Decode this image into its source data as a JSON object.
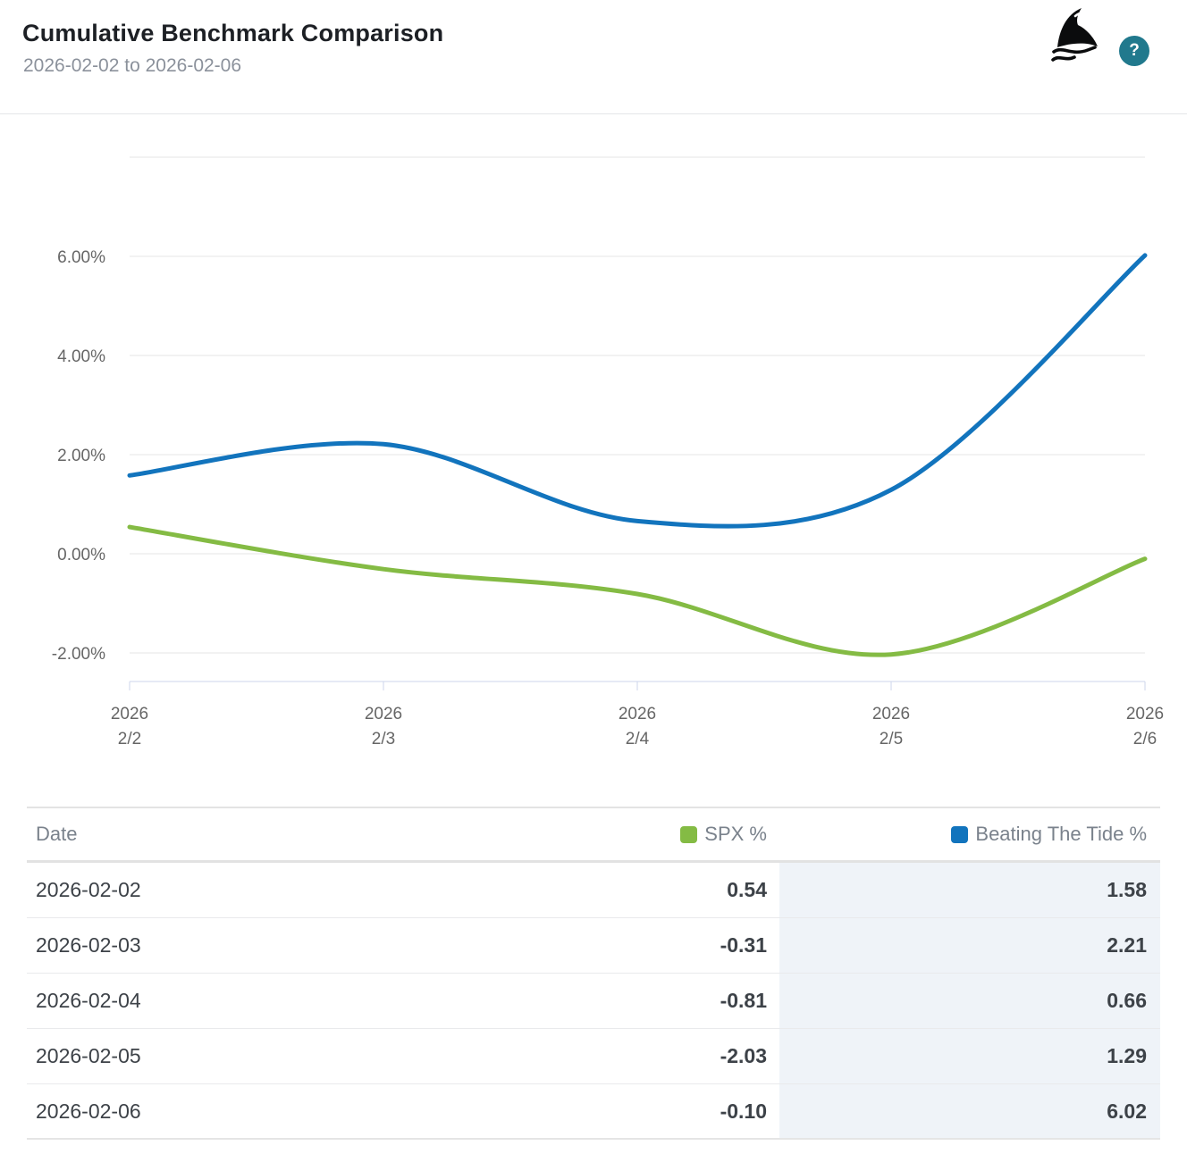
{
  "header": {
    "title": "Cumulative Benchmark Comparison",
    "date_range": "2026-02-02 to 2026-02-06",
    "logo_icon": "shark-fin-logo",
    "help_label": "?"
  },
  "colors": {
    "spx_green": "#84bb44",
    "tide_blue": "#1274bd",
    "help_teal": "#21798d",
    "grid_gray": "#e6e6e6",
    "axis_blue_gray": "#ccd6eb",
    "highlight_col_bg": "#eff3f8"
  },
  "chart_data": {
    "type": "line",
    "subtype": "spline",
    "categories": [
      [
        "2026",
        "2/2"
      ],
      [
        "2026",
        "2/3"
      ],
      [
        "2026",
        "2/4"
      ],
      [
        "2026",
        "2/5"
      ],
      [
        "2026",
        "2/6"
      ]
    ],
    "x": [
      "2026-02-02",
      "2026-02-03",
      "2026-02-04",
      "2026-02-05",
      "2026-02-06"
    ],
    "series": [
      {
        "name": "SPX %",
        "color": "#84bb44",
        "values": [
          0.54,
          -0.31,
          -0.81,
          -2.03,
          -0.1
        ]
      },
      {
        "name": "Beating The Tide %",
        "color": "#1274bd",
        "values": [
          1.58,
          2.21,
          0.66,
          1.29,
          6.02
        ]
      }
    ],
    "y_axis": {
      "unit": "%",
      "ticks": [
        {
          "value": 8,
          "label": ""
        },
        {
          "value": 6,
          "label": "6.00%"
        },
        {
          "value": 4,
          "label": "4.00%"
        },
        {
          "value": 2,
          "label": "2.00%"
        },
        {
          "value": 0,
          "label": "0.00%"
        },
        {
          "value": -2,
          "label": "-2.00%"
        }
      ]
    },
    "ylim": [
      -2.6,
      8
    ],
    "grid": true,
    "legend_position": "table-header"
  },
  "table": {
    "columns": [
      "Date",
      "SPX %",
      "Beating The Tide %"
    ],
    "date_header": "Date",
    "rows": [
      {
        "date": "2026-02-02",
        "spx": "0.54",
        "tide": "1.58"
      },
      {
        "date": "2026-02-03",
        "spx": "-0.31",
        "tide": "2.21"
      },
      {
        "date": "2026-02-04",
        "spx": "-0.81",
        "tide": "0.66"
      },
      {
        "date": "2026-02-05",
        "spx": "-2.03",
        "tide": "1.29"
      },
      {
        "date": "2026-02-06",
        "spx": "-0.10",
        "tide": "6.02"
      }
    ]
  }
}
